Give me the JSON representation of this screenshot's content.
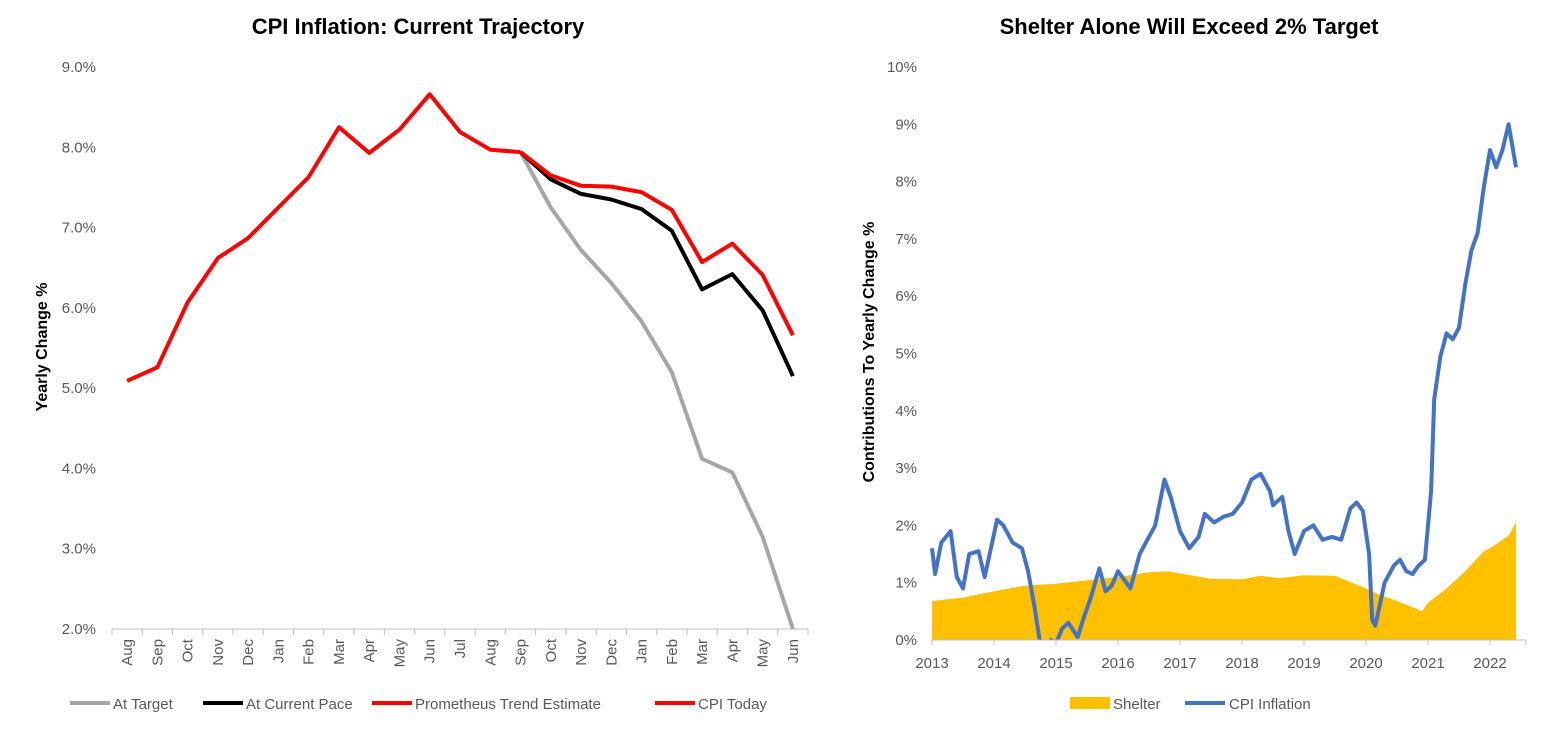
{
  "chart_data": [
    {
      "type": "line",
      "title": "CPI Inflation: Current Trajectory",
      "xlabel": "",
      "ylabel": "Yearly Change %",
      "ylim": [
        2.0,
        9.0
      ],
      "yticks": [
        "9.0%",
        "8.0%",
        "7.0%",
        "6.0%",
        "5.0%",
        "4.0%",
        "3.0%",
        "2.0%"
      ],
      "categories": [
        "Aug",
        "Sep",
        "Oct",
        "Nov",
        "Dec",
        "Jan",
        "Feb",
        "Mar",
        "Apr",
        "May",
        "Jun",
        "Jul",
        "Aug",
        "Sep",
        "Oct",
        "Nov",
        "Dec",
        "Jan",
        "Feb",
        "Mar",
        "Apr",
        "May",
        "Jun"
      ],
      "legend_position": "bottom",
      "series": [
        {
          "name": "At Target",
          "color": "#a6a6a6",
          "values": [
            null,
            null,
            null,
            null,
            null,
            null,
            null,
            null,
            null,
            null,
            null,
            null,
            null,
            7.94,
            7.25,
            6.72,
            6.31,
            5.83,
            5.2,
            4.12,
            3.95,
            3.15,
            2.0
          ]
        },
        {
          "name": "At Current Pace",
          "color": "#000000",
          "values": [
            null,
            null,
            null,
            null,
            null,
            null,
            null,
            null,
            null,
            null,
            null,
            null,
            null,
            7.94,
            7.6,
            7.42,
            7.35,
            7.23,
            6.96,
            6.23,
            6.42,
            5.97,
            5.15
          ]
        },
        {
          "name": "Prometheus Trend Estimate",
          "color": "#ff0000",
          "values": [
            null,
            null,
            null,
            null,
            null,
            null,
            null,
            null,
            null,
            null,
            null,
            null,
            null,
            7.94,
            7.65,
            7.52,
            7.51,
            7.44,
            7.22,
            6.57,
            6.8,
            6.41,
            5.66
          ]
        },
        {
          "name": "CPI Today",
          "color": "#ff0000",
          "values": [
            5.09,
            5.26,
            6.07,
            6.62,
            6.87,
            7.25,
            7.63,
            8.25,
            7.93,
            8.22,
            8.66,
            8.19,
            7.97,
            7.94,
            null,
            null,
            null,
            null,
            null,
            null,
            null,
            null,
            null
          ]
        }
      ]
    },
    {
      "type": "area",
      "title": "Shelter Alone Will Exceed 2% Target",
      "xlabel": "",
      "ylabel": "Contributions To Yearly Change %",
      "ylim": [
        0,
        10
      ],
      "yticks": [
        "10%",
        "9%",
        "8%",
        "7%",
        "6%",
        "5%",
        "4%",
        "3%",
        "2%",
        "1%",
        "0%"
      ],
      "xticks": [
        "2013",
        "2014",
        "2015",
        "2016",
        "2017",
        "2018",
        "2019",
        "2020",
        "2021",
        "2022"
      ],
      "xlim": [
        2013.0,
        2022.42
      ],
      "legend_position": "bottom",
      "series": [
        {
          "name": "Shelter",
          "type": "area",
          "color": "#ffc000",
          "x": [
            2013.0,
            2013.5,
            2014.0,
            2014.5,
            2015.0,
            2015.5,
            2016.0,
            2016.5,
            2016.8,
            2017.0,
            2017.5,
            2018.0,
            2018.3,
            2018.6,
            2019.0,
            2019.5,
            2020.0,
            2020.2,
            2020.5,
            2020.8,
            2020.9,
            2021.0,
            2021.3,
            2021.6,
            2021.9,
            2022.0,
            2022.2,
            2022.3,
            2022.42
          ],
          "values": [
            0.68,
            0.74,
            0.85,
            0.95,
            0.98,
            1.04,
            1.1,
            1.18,
            1.2,
            1.16,
            1.07,
            1.06,
            1.12,
            1.08,
            1.13,
            1.12,
            0.9,
            0.8,
            0.68,
            0.55,
            0.5,
            0.65,
            0.9,
            1.2,
            1.55,
            1.6,
            1.75,
            1.82,
            2.05
          ]
        },
        {
          "name": "CPI Inflation",
          "type": "line",
          "color": "#4472c4",
          "x": [
            2013.0,
            2013.05,
            2013.15,
            2013.3,
            2013.4,
            2013.5,
            2013.6,
            2013.75,
            2013.85,
            2013.95,
            2014.05,
            2014.15,
            2014.3,
            2014.45,
            2014.55,
            2014.65,
            2014.75,
            2014.83,
            2014.92,
            2015.0,
            2015.1,
            2015.2,
            2015.35,
            2015.45,
            2015.55,
            2015.7,
            2015.8,
            2015.9,
            2016.0,
            2016.1,
            2016.2,
            2016.35,
            2016.45,
            2016.6,
            2016.75,
            2016.85,
            2017.0,
            2017.15,
            2017.3,
            2017.4,
            2017.55,
            2017.7,
            2017.85,
            2018.0,
            2018.15,
            2018.3,
            2018.45,
            2018.5,
            2018.65,
            2018.75,
            2018.85,
            2019.0,
            2019.15,
            2019.3,
            2019.45,
            2019.6,
            2019.75,
            2019.85,
            2019.95,
            2020.05,
            2020.1,
            2020.15,
            2020.3,
            2020.45,
            2020.55,
            2020.65,
            2020.75,
            2020.85,
            2020.95,
            2021.05,
            2021.1,
            2021.2,
            2021.3,
            2021.4,
            2021.5,
            2021.6,
            2021.7,
            2021.8,
            2021.9,
            2022.0,
            2022.1,
            2022.2,
            2022.3,
            2022.42
          ],
          "values": [
            1.6,
            1.15,
            1.7,
            1.9,
            1.1,
            0.9,
            1.5,
            1.55,
            1.1,
            1.6,
            2.1,
            2.0,
            1.7,
            1.6,
            1.2,
            0.6,
            -0.1,
            -0.2,
            0.0,
            -0.05,
            0.2,
            0.3,
            0.05,
            0.4,
            0.7,
            1.25,
            0.85,
            0.95,
            1.2,
            1.05,
            0.9,
            1.5,
            1.7,
            2.0,
            2.8,
            2.5,
            1.9,
            1.6,
            1.8,
            2.2,
            2.05,
            2.15,
            2.2,
            2.4,
            2.8,
            2.9,
            2.6,
            2.35,
            2.5,
            1.9,
            1.5,
            1.9,
            2.0,
            1.75,
            1.8,
            1.75,
            2.3,
            2.4,
            2.25,
            1.5,
            0.35,
            0.25,
            1.0,
            1.3,
            1.4,
            1.2,
            1.15,
            1.3,
            1.4,
            2.6,
            4.2,
            4.95,
            5.35,
            5.25,
            5.45,
            6.2,
            6.8,
            7.1,
            7.9,
            8.55,
            8.25,
            8.55,
            9.0,
            8.25
          ]
        }
      ]
    }
  ]
}
